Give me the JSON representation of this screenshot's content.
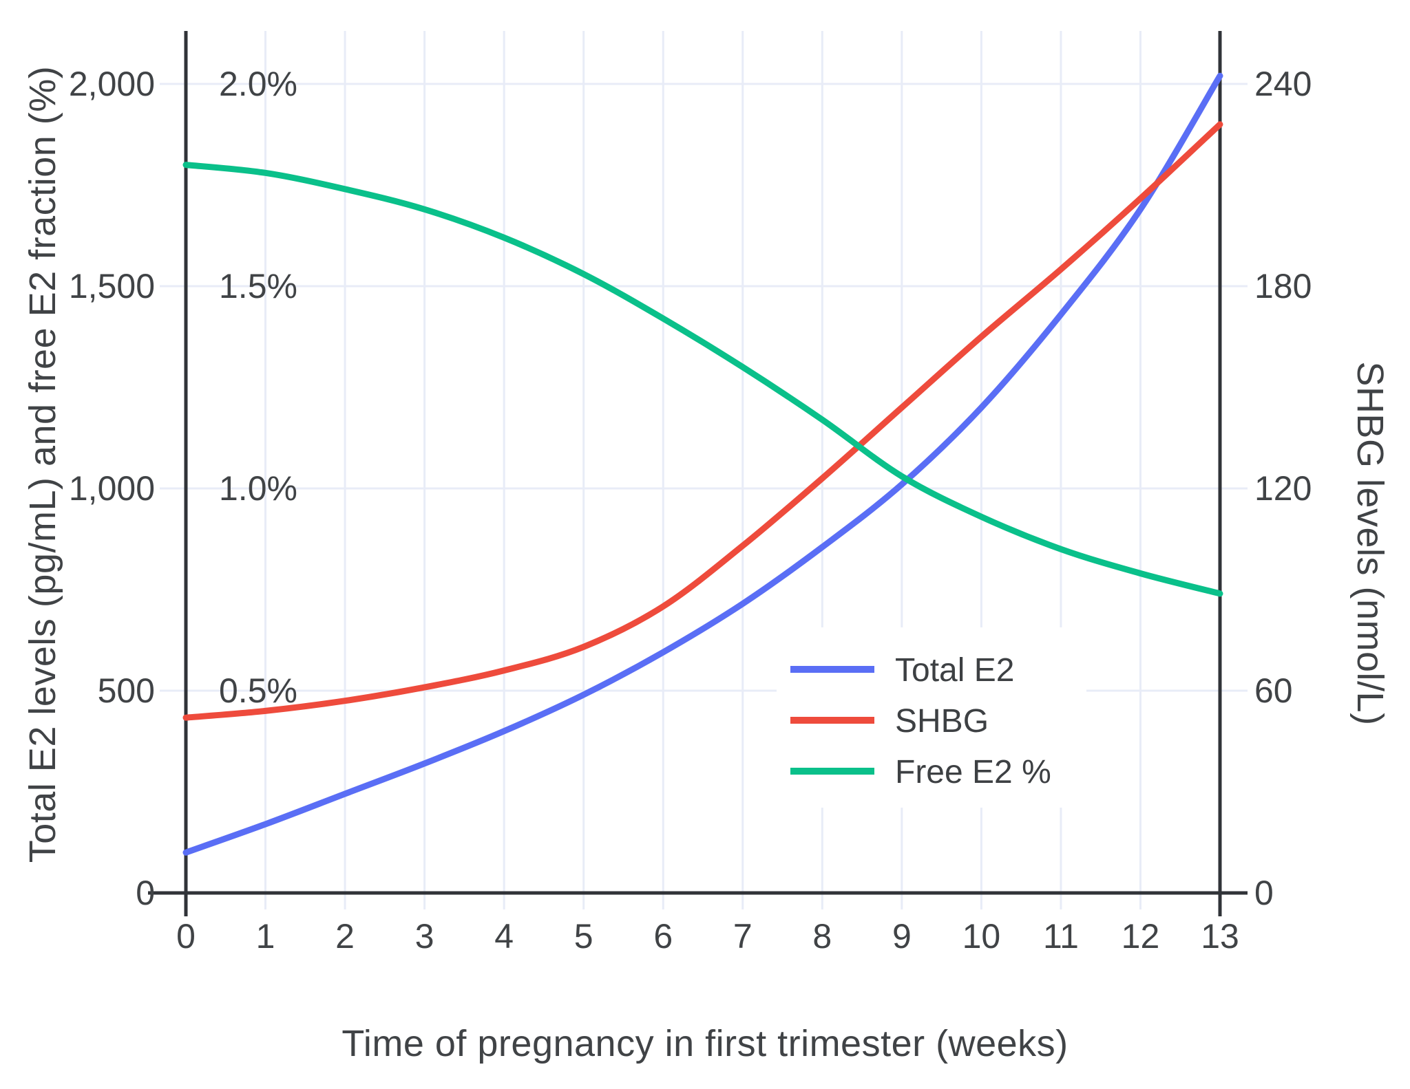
{
  "chart_data": {
    "type": "line",
    "title": "",
    "xlabel": "Time of pregnancy in first trimester (weeks)",
    "ylabel_left": "Total E2 levels (pg/mL) and free E2 fraction (%)",
    "ylabel_right": "SHBG levels (nmol/L)",
    "x": [
      0,
      1,
      2,
      3,
      4,
      5,
      6,
      7,
      8,
      9,
      10,
      11,
      12,
      13
    ],
    "series": [
      {
        "name": "Total E2",
        "axis": "left",
        "units": "pg/mL",
        "color": "#5a6ef5",
        "values": [
          100,
          170,
          245,
          320,
          400,
          490,
          595,
          715,
          855,
          1010,
          1200,
          1430,
          1690,
          2020
        ]
      },
      {
        "name": "SHBG",
        "axis": "right",
        "units": "nmol/L",
        "color": "#ee4b3c",
        "values": [
          52,
          54,
          57,
          61,
          66,
          73,
          85,
          103,
          123,
          144,
          165,
          185,
          206,
          228
        ]
      },
      {
        "name": "Free E2 %",
        "axis": "percent",
        "units": "%",
        "color": "#0ac08a",
        "values": [
          1.8,
          1.78,
          1.74,
          1.69,
          1.62,
          1.53,
          1.42,
          1.3,
          1.17,
          1.03,
          0.93,
          0.85,
          0.79,
          0.74
        ]
      }
    ],
    "axes": {
      "left": {
        "range": [
          0,
          2000
        ],
        "tick_values": [
          0,
          500,
          1000,
          1500,
          2000
        ],
        "tick_labels": [
          "0",
          "500",
          "1,000",
          "1,500",
          "2,000"
        ]
      },
      "percent": {
        "range": [
          0,
          2.0
        ],
        "tick_values": [
          0.5,
          1.0,
          1.5,
          2.0
        ],
        "tick_labels": [
          "0.5%",
          "1.0%",
          "1.5%",
          "2.0%"
        ]
      },
      "right": {
        "range": [
          0,
          240
        ],
        "tick_values": [
          0,
          60,
          120,
          180,
          240
        ],
        "tick_labels": [
          "0",
          "60",
          "120",
          "180",
          "240"
        ]
      },
      "x": {
        "range": [
          0,
          13
        ],
        "tick_values": [
          0,
          1,
          2,
          3,
          4,
          5,
          6,
          7,
          8,
          9,
          10,
          11,
          12,
          13
        ],
        "tick_labels": [
          "0",
          "1",
          "2",
          "3",
          "4",
          "5",
          "6",
          "7",
          "8",
          "9",
          "10",
          "11",
          "12",
          "13"
        ]
      }
    },
    "grid": true,
    "legend": {
      "position": "inside-right",
      "entries": [
        "Total E2",
        "SHBG",
        "Free E2 %"
      ]
    },
    "colors": {
      "background": "#ffffff",
      "grid": "#e8ecf7",
      "axis_line": "#303338",
      "tick_text": "#404346",
      "legend_text": "#3d4043"
    }
  }
}
